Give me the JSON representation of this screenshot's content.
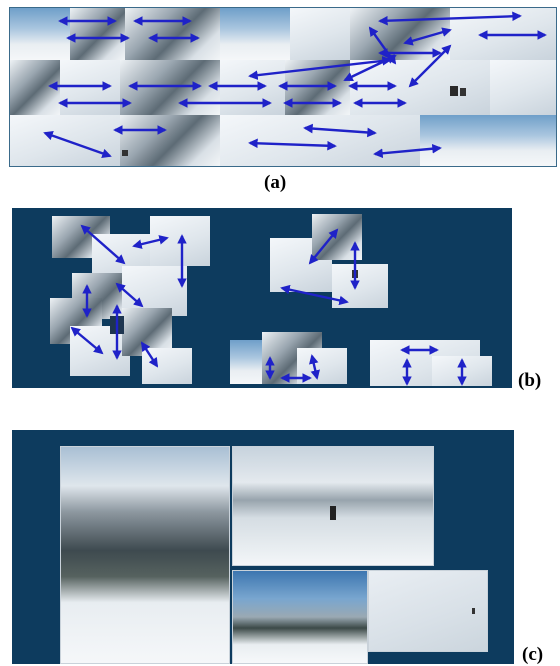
{
  "captions": {
    "a": "(a)",
    "b": "(b)",
    "c": "(c)"
  },
  "colors": {
    "panel_bg": "#0d3b5e",
    "arrow": "#1f22c8",
    "caption": "#000000"
  },
  "panels": {
    "a": {
      "description_kind": "image-mosaic-with-arrows"
    },
    "b": {
      "description_kind": "clustered-image-groups-with-arrows"
    },
    "c": {
      "description_kind": "final-photo-collage"
    }
  }
}
